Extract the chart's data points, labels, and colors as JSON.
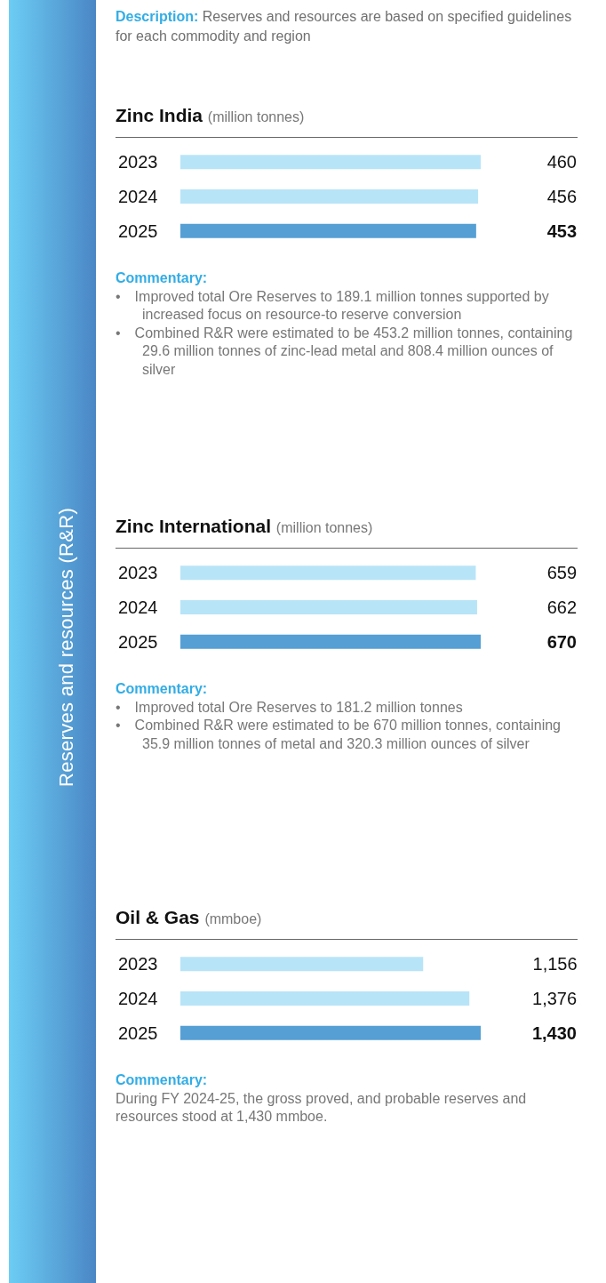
{
  "chart_data": [
    {
      "type": "other",
      "title": "Reserves and resources (R&R)",
      "annotations": [
        "Description:",
        "Reserves and resources are based on specified guidelines for each commodity and region"
      ]
    },
    {
      "type": "bar",
      "orientation": "horizontal",
      "title": "Zinc India",
      "subtitle": "(million tonnes)",
      "categories": [
        "2023",
        "2024",
        "2025"
      ],
      "values": [
        460,
        456,
        453
      ],
      "colors": [
        "#b8e4f8",
        "#b8e4f8",
        "#559fd5"
      ],
      "data_labels": true,
      "annotations": [
        "Commentary:",
        "• Improved total Ore Reserves to 189.1 million tonnes supported by increased focus on resource-to reserve conversion",
        "• Combined R&R were estimated to be 453.2 million tonnes, containing 29.6 million tonnes of zinc-lead metal and 808.4 million ounces of silver"
      ]
    },
    {
      "type": "bar",
      "orientation": "horizontal",
      "title": "Zinc International",
      "subtitle": "(million tonnes)",
      "categories": [
        "2023",
        "2024",
        "2025"
      ],
      "values": [
        659,
        662,
        670
      ],
      "colors": [
        "#b8e4f8",
        "#b8e4f8",
        "#559fd5"
      ],
      "data_labels": true,
      "annotations": [
        "Commentary:",
        "• Improved total Ore Reserves to 181.2 million tonnes",
        "• Combined R&R were estimated to be 670 million tonnes, containing 35.9 million tonnes of metal and 320.3 million ounces of silver"
      ]
    },
    {
      "type": "bar",
      "orientation": "horizontal",
      "title": "Oil & Gas",
      "subtitle": "(mmboe)",
      "categories": [
        "2023",
        "2024",
        "2025"
      ],
      "values": [
        1156,
        1376,
        1430
      ],
      "colors": [
        "#b8e4f8",
        "#b8e4f8",
        "#559fd5"
      ],
      "value_labels": [
        "1,156",
        "1,376",
        "1,430"
      ],
      "annotations": [
        "Commentary:",
        "During FY 2024-25, the gross proved, and probable reserves and resources stood at 1,430 mmboe."
      ]
    }
  ]
}
